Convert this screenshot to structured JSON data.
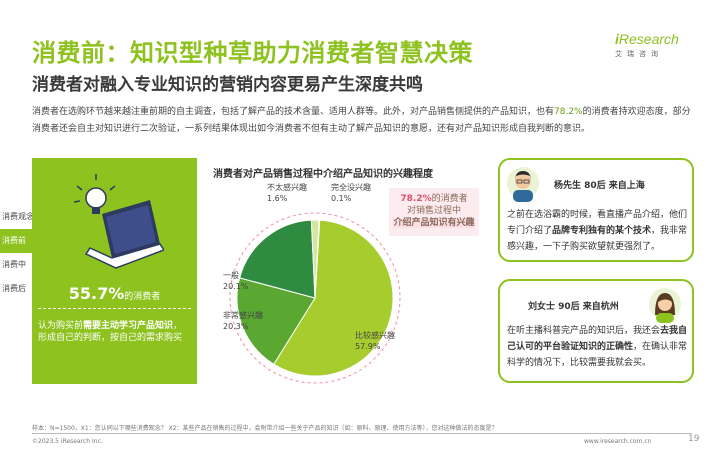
{
  "header": {
    "title": "消费前：知识型种草助力消费者智慧决策",
    "subtitle": "消费者对融入专业知识的营销内容更易产生深度共鸣"
  },
  "logo": {
    "brand_i": "i",
    "brand_rest": "Research",
    "cn": "艾瑞咨询"
  },
  "intro": {
    "text1": "消费者在选购环节越来越注重前期的自主调查，包括了解产品的技术含量、适用人群等。此外，对产品销售侧提供的产品知识，也有",
    "highlight": "78.2%",
    "text2": "的消费者持欢迎态度，部分",
    "line2": "消费者还会自主对知识进行二次验证，一系列结果体现出如今消费者不但有主动了解产品知识的意愿，还有对产品知识形成自我判断的意识。"
  },
  "tabs": [
    "消费观念",
    "消费前",
    "消费中",
    "消费后"
  ],
  "left_panel": {
    "stat_value": "55.7%",
    "stat_label": "的消费者",
    "desc1": "认为购买前",
    "desc_bold": "需要主动学习产品知识",
    "desc2": "，",
    "desc3": "形成自己的判断，按自己的需求购买"
  },
  "chart_data": {
    "type": "pie",
    "title": "消费者对产品销售过程中介绍产品知识的兴趣程度",
    "slices": [
      {
        "label": "比较感兴趣",
        "value": 57.9,
        "display": "57.9%",
        "color": "#a6cc2e"
      },
      {
        "label": "非常感兴趣",
        "value": 20.3,
        "display": "20.3%",
        "color": "#5aa832"
      },
      {
        "label": "一般",
        "value": 20.1,
        "display": "20.1%",
        "color": "#2e8b3f"
      },
      {
        "label": "不太感兴趣",
        "value": 1.6,
        "display": "1.6%",
        "color": "#d4e7a0"
      },
      {
        "label": "完全没兴趣",
        "value": 0.1,
        "display": "0.1%",
        "color": "#e8f1cf"
      }
    ],
    "callout": {
      "pct": "78.2%",
      "text1": "的消费者",
      "text2": "对销售过程中",
      "text3": "介绍产品知识有兴趣"
    }
  },
  "cards": [
    {
      "who": "杨先生 80后 来自上海",
      "q1": "之前在选浴霸的时候，看直播产品介绍，他们",
      "q2a": "专门介绍了",
      "q2b": "品牌专利独有的某个技术",
      "q2c": "，我非常",
      "q3": "感兴趣，一下子购买欲望就更强烈了。"
    },
    {
      "who": "刘女士 90后 来自杭州",
      "q1a": "在听主播科普完产品的知识后，我还会",
      "q1b": "去我自",
      "q2a": "己认可的平台验证知识的正确性",
      "q2b": "，在确认非常",
      "q3": "科学的情况下，比较需要我就会买。"
    }
  ],
  "footnote": "样本：N=1500，X1：您认同以下哪些消费观念？ X2：某些产品在销售的过程中，会附带介绍一些关于产品的知识（如：原料、原理、使用方法等），您对这种做法的态度是？",
  "footer": {
    "left": "©2023.5 iResearch Inc.",
    "right": "www.iresearch.com.cn",
    "page": "19"
  }
}
